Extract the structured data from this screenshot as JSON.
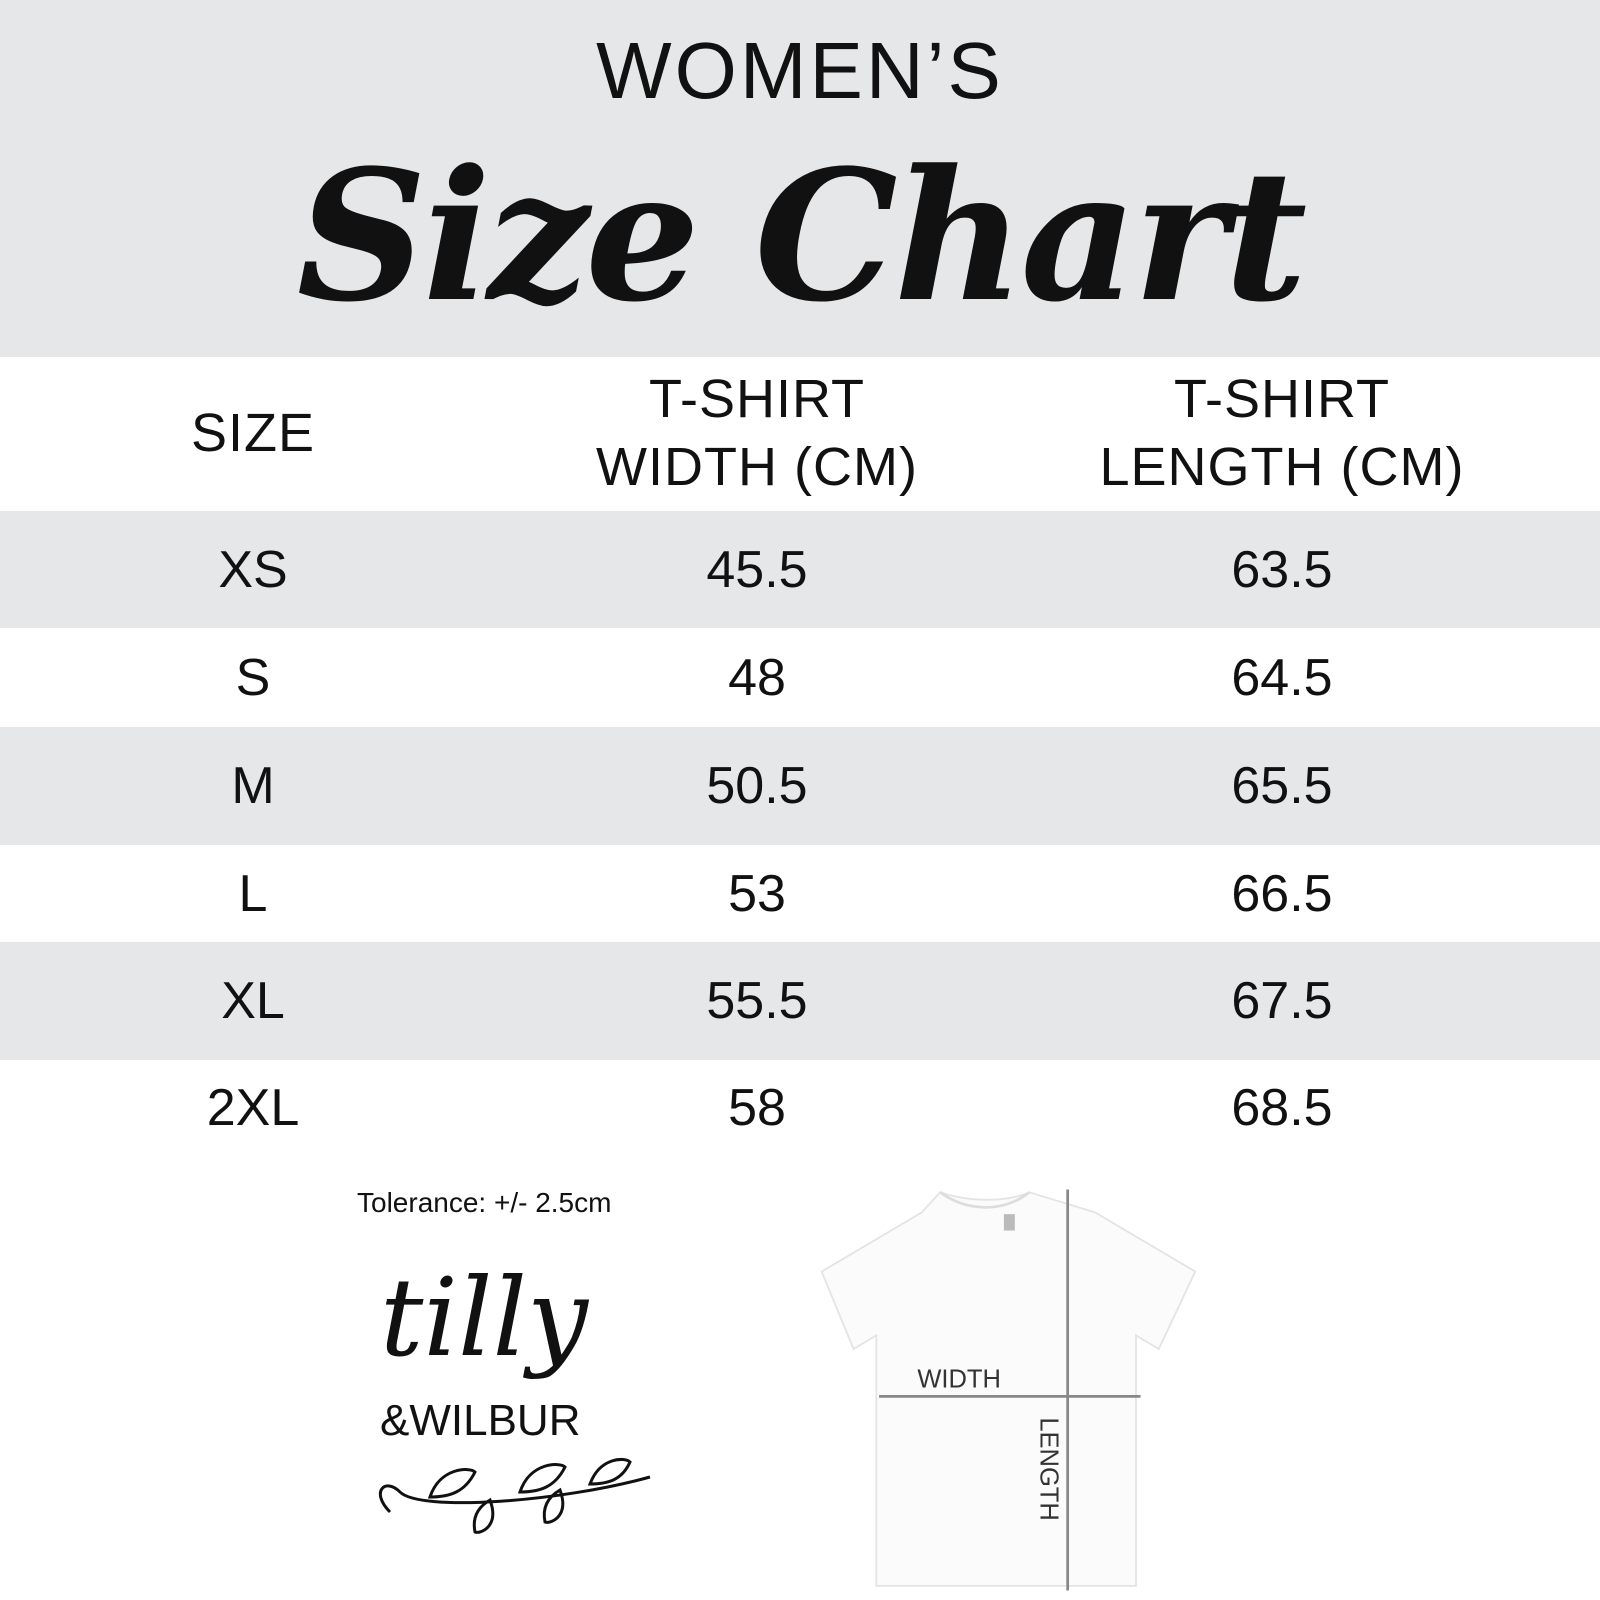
{
  "header": {
    "kicker": "WOMEN’S",
    "title": "Size Chart"
  },
  "chart_data": {
    "type": "table",
    "columns": [
      "SIZE",
      "T-SHIRT WIDTH (CM)",
      "T-SHIRT LENGTH (CM)"
    ],
    "column_lines": [
      [
        "SIZE"
      ],
      [
        "T-SHIRT",
        "WIDTH (CM)"
      ],
      [
        "T-SHIRT",
        "LENGTH (CM)"
      ]
    ],
    "rows": [
      [
        "XS",
        "45.5",
        "63.5"
      ],
      [
        "S",
        "48",
        "64.5"
      ],
      [
        "M",
        "50.5",
        "65.5"
      ],
      [
        "L",
        "53",
        "66.5"
      ],
      [
        "XL",
        "55.5",
        "67.5"
      ],
      [
        "2XL",
        "58",
        "68.5"
      ]
    ]
  },
  "footer": {
    "tolerance": "Tolerance: +/- 2.5cm",
    "logo": {
      "line1": "tilly",
      "line2": "&WILBUR"
    },
    "diagram": {
      "width_label": "WIDTH",
      "length_label": "LENGTH"
    }
  },
  "colors": {
    "band": "#e6e7e9",
    "text": "#111111",
    "measure_line": "#888888"
  }
}
